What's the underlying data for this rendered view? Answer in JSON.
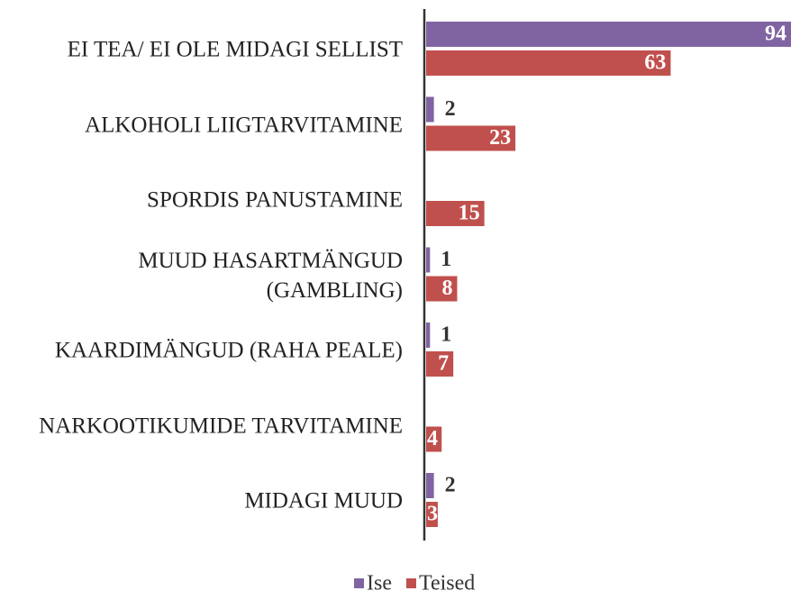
{
  "chart_data": {
    "type": "bar",
    "orientation": "horizontal",
    "categories": [
      "EI TEA/ EI OLE MIDAGI SELLIST",
      "ALKOHOLI LIIGTARVITAMINE",
      "SPORDIS PANUSTAMINE",
      "MUUD HASARTMÄNGUD (GAMBLING)",
      "KAARDIMÄNGUD (RAHA PEALE)",
      "NARKOOTIKUMIDE TARVITAMINE",
      "MIDAGI MUUD"
    ],
    "series": [
      {
        "name": "Ise",
        "color": "#8064a2",
        "values": [
          94,
          2,
          null,
          1,
          1,
          null,
          2
        ]
      },
      {
        "name": "Teised",
        "color": "#c0504d",
        "values": [
          63,
          23,
          15,
          8,
          7,
          4,
          3
        ]
      }
    ],
    "legend": "bottom"
  }
}
